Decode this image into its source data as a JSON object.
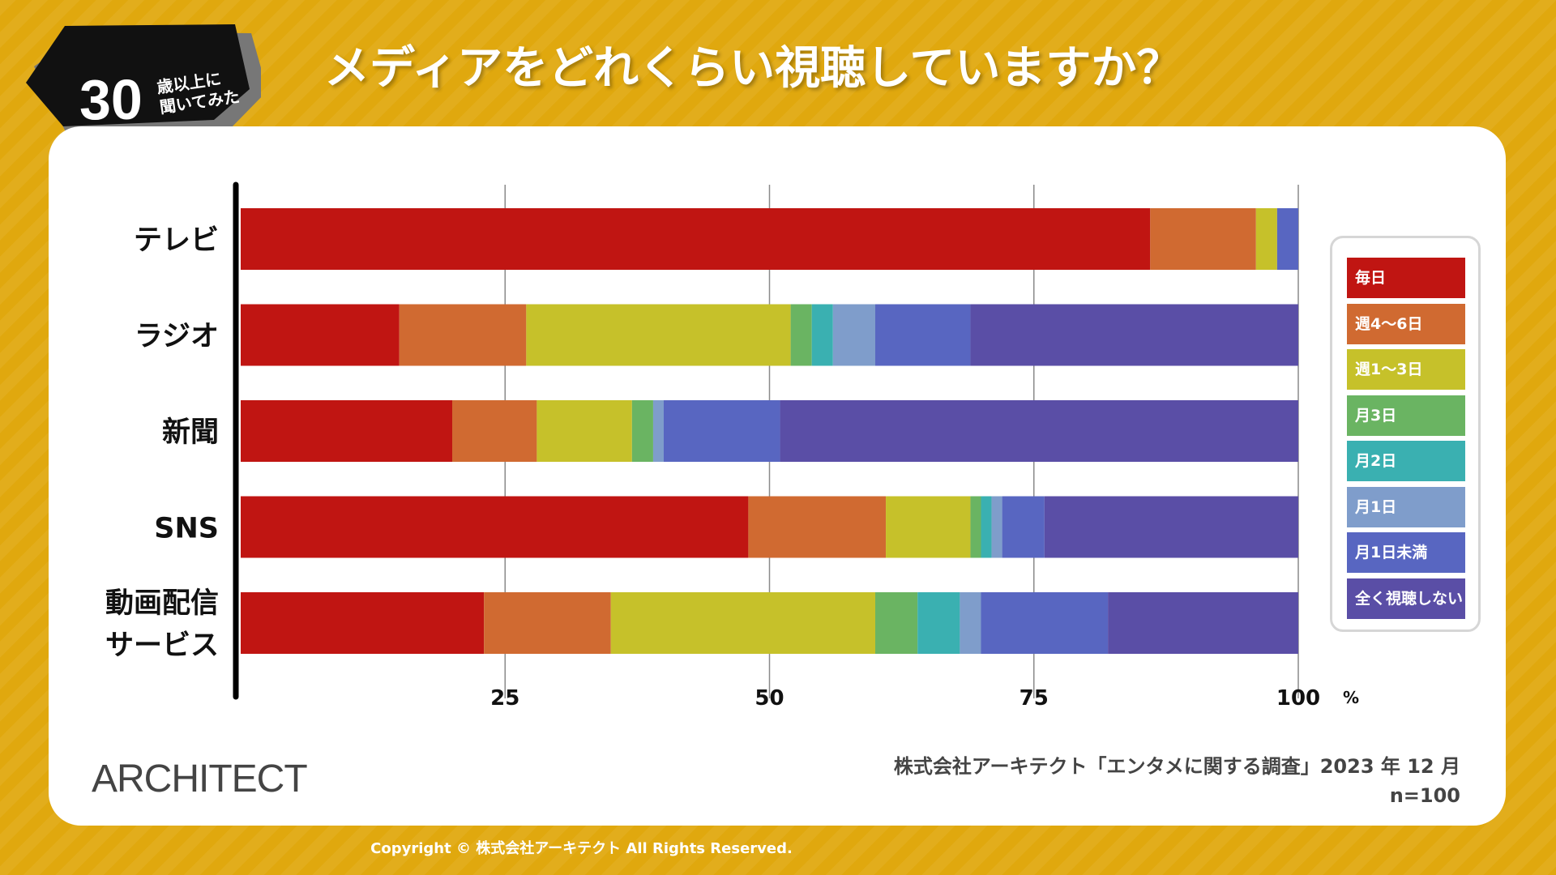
{
  "badge": {
    "number": "30",
    "text_line1": "歳以上に",
    "text_line2": "聞いてみた"
  },
  "title": "メディアをどれくらい視聴していますか？",
  "chart_data": {
    "type": "bar",
    "orientation": "horizontal",
    "stacked": true,
    "categories": [
      [
        "テレビ"
      ],
      [
        "ラジオ"
      ],
      [
        "新聞"
      ],
      [
        "SNS"
      ],
      [
        "動画配信",
        "サービス"
      ]
    ],
    "xlim": [
      0,
      100
    ],
    "xticks": [
      "25",
      "50",
      "75",
      "100"
    ],
    "xunit": "%",
    "series": [
      {
        "name": "毎日",
        "color": "#c01512",
        "values": [
          86,
          15,
          20,
          48,
          23
        ]
      },
      {
        "name": "週4〜6日",
        "color": "#d06a31",
        "values": [
          10,
          12,
          8,
          13,
          12
        ]
      },
      {
        "name": "週1〜3日",
        "color": "#c6c12a",
        "values": [
          2,
          25,
          9,
          8,
          25
        ]
      },
      {
        "name": "月3日",
        "color": "#6ab462",
        "values": [
          0,
          2,
          2,
          1,
          4
        ]
      },
      {
        "name": "月2日",
        "color": "#3ab0b1",
        "values": [
          0,
          2,
          0,
          1,
          4
        ]
      },
      {
        "name": "月1日",
        "color": "#7f9dcb",
        "values": [
          0,
          4,
          1,
          1,
          2
        ]
      },
      {
        "name": "月1日未満",
        "color": "#5866c1",
        "values": [
          2,
          9,
          11,
          4,
          12
        ]
      },
      {
        "name": "全く視聴しない",
        "color": "#5a4ea6",
        "values": [
          0,
          31,
          49,
          24,
          18
        ]
      }
    ]
  },
  "logo": "ARCHITECT",
  "source": {
    "line1": "株式会社アーキテクト「エンタメに関する調査」2023 年 12 月",
    "line2": "n=100"
  },
  "copyright": "Copyright © 株式会社アーキテクト All Rights Reserved."
}
